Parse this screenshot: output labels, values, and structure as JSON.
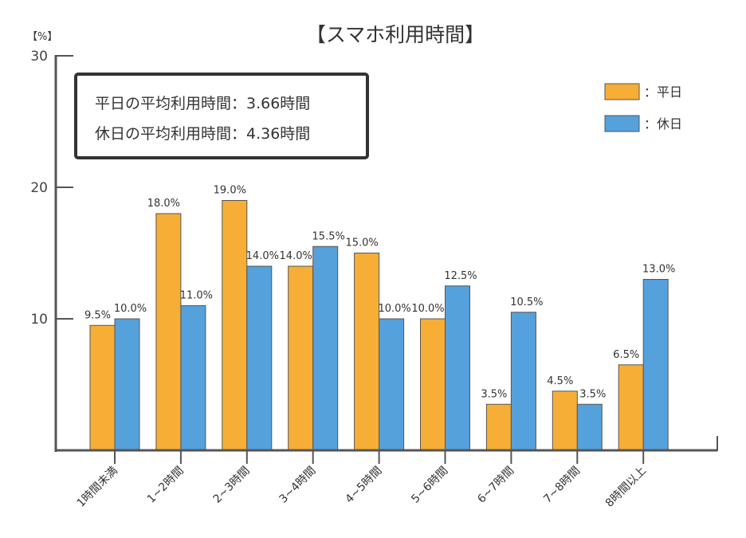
{
  "chart_data": {
    "type": "bar",
    "title": "【スマホ利用時間】",
    "unit_label": "【%】",
    "categories": [
      "1時間未満",
      "1~2時間",
      "2~3時間",
      "3~4時間",
      "4~5時間",
      "5~6時間",
      "6~7時間",
      "7~8時間",
      "8時間以上"
    ],
    "series": [
      {
        "name": "平日",
        "values": [
          9.5,
          18.0,
          19.0,
          14.0,
          15.0,
          10.0,
          3.5,
          4.5,
          6.5
        ],
        "labels": [
          "9.5%",
          "18.0%",
          "19.0%",
          "14.0%",
          "15.0%",
          "10.0%",
          "3.5%",
          "4.5%",
          "6.5%"
        ],
        "color": "#f7ae36"
      },
      {
        "name": "休日",
        "values": [
          10.0,
          11.0,
          14.0,
          15.5,
          10.0,
          12.5,
          10.5,
          3.5,
          13.0
        ],
        "labels": [
          "10.0%",
          "11.0%",
          "14.0%",
          "15.5%",
          "10.0%",
          "12.5%",
          "10.5%",
          "3.5%",
          "13.0%"
        ],
        "color": "#55a1dc"
      }
    ],
    "ylim": [
      0,
      30
    ],
    "yticks": [
      "10",
      "20",
      "30"
    ],
    "legend_markers": [
      "：平日",
      "：休日"
    ],
    "legend_position": "top-right",
    "grid": false,
    "annotation": {
      "line1": "平日の平均利用時間：3.66時間",
      "line2": "休日の平均利用時間：4.36時間"
    }
  }
}
